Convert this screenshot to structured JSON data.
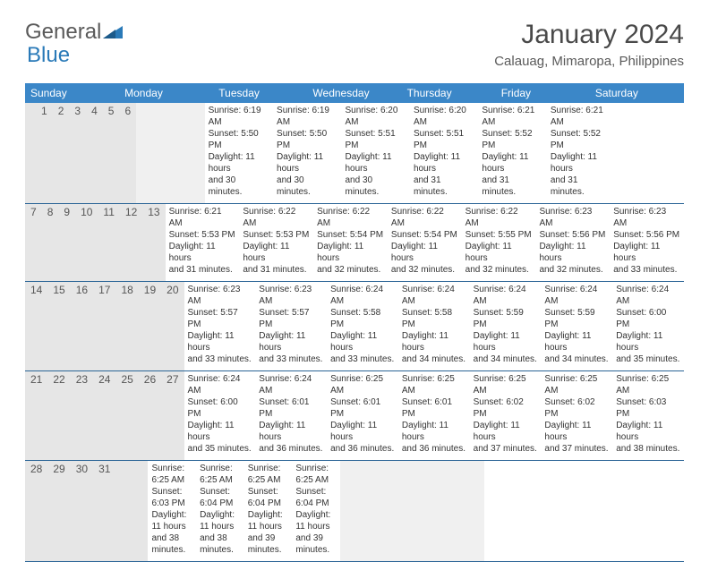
{
  "logo": {
    "general": "General",
    "blue": "Blue"
  },
  "title": "January 2024",
  "subtitle": "Calauag, Mimaropa, Philippines",
  "header_bg": "#3b87c8",
  "daynum_bg": "#e6e6e6",
  "border_color": "#2a6496",
  "day_headers": [
    "Sunday",
    "Monday",
    "Tuesday",
    "Wednesday",
    "Thursday",
    "Friday",
    "Saturday"
  ],
  "weeks": [
    [
      null,
      {
        "num": "1",
        "sunrise": "Sunrise: 6:19 AM",
        "sunset": "Sunset: 5:50 PM",
        "d1": "Daylight: 11 hours",
        "d2": "and 30 minutes."
      },
      {
        "num": "2",
        "sunrise": "Sunrise: 6:19 AM",
        "sunset": "Sunset: 5:50 PM",
        "d1": "Daylight: 11 hours",
        "d2": "and 30 minutes."
      },
      {
        "num": "3",
        "sunrise": "Sunrise: 6:20 AM",
        "sunset": "Sunset: 5:51 PM",
        "d1": "Daylight: 11 hours",
        "d2": "and 30 minutes."
      },
      {
        "num": "4",
        "sunrise": "Sunrise: 6:20 AM",
        "sunset": "Sunset: 5:51 PM",
        "d1": "Daylight: 11 hours",
        "d2": "and 31 minutes."
      },
      {
        "num": "5",
        "sunrise": "Sunrise: 6:21 AM",
        "sunset": "Sunset: 5:52 PM",
        "d1": "Daylight: 11 hours",
        "d2": "and 31 minutes."
      },
      {
        "num": "6",
        "sunrise": "Sunrise: 6:21 AM",
        "sunset": "Sunset: 5:52 PM",
        "d1": "Daylight: 11 hours",
        "d2": "and 31 minutes."
      }
    ],
    [
      {
        "num": "7",
        "sunrise": "Sunrise: 6:21 AM",
        "sunset": "Sunset: 5:53 PM",
        "d1": "Daylight: 11 hours",
        "d2": "and 31 minutes."
      },
      {
        "num": "8",
        "sunrise": "Sunrise: 6:22 AM",
        "sunset": "Sunset: 5:53 PM",
        "d1": "Daylight: 11 hours",
        "d2": "and 31 minutes."
      },
      {
        "num": "9",
        "sunrise": "Sunrise: 6:22 AM",
        "sunset": "Sunset: 5:54 PM",
        "d1": "Daylight: 11 hours",
        "d2": "and 32 minutes."
      },
      {
        "num": "10",
        "sunrise": "Sunrise: 6:22 AM",
        "sunset": "Sunset: 5:54 PM",
        "d1": "Daylight: 11 hours",
        "d2": "and 32 minutes."
      },
      {
        "num": "11",
        "sunrise": "Sunrise: 6:22 AM",
        "sunset": "Sunset: 5:55 PM",
        "d1": "Daylight: 11 hours",
        "d2": "and 32 minutes."
      },
      {
        "num": "12",
        "sunrise": "Sunrise: 6:23 AM",
        "sunset": "Sunset: 5:56 PM",
        "d1": "Daylight: 11 hours",
        "d2": "and 32 minutes."
      },
      {
        "num": "13",
        "sunrise": "Sunrise: 6:23 AM",
        "sunset": "Sunset: 5:56 PM",
        "d1": "Daylight: 11 hours",
        "d2": "and 33 minutes."
      }
    ],
    [
      {
        "num": "14",
        "sunrise": "Sunrise: 6:23 AM",
        "sunset": "Sunset: 5:57 PM",
        "d1": "Daylight: 11 hours",
        "d2": "and 33 minutes."
      },
      {
        "num": "15",
        "sunrise": "Sunrise: 6:23 AM",
        "sunset": "Sunset: 5:57 PM",
        "d1": "Daylight: 11 hours",
        "d2": "and 33 minutes."
      },
      {
        "num": "16",
        "sunrise": "Sunrise: 6:24 AM",
        "sunset": "Sunset: 5:58 PM",
        "d1": "Daylight: 11 hours",
        "d2": "and 33 minutes."
      },
      {
        "num": "17",
        "sunrise": "Sunrise: 6:24 AM",
        "sunset": "Sunset: 5:58 PM",
        "d1": "Daylight: 11 hours",
        "d2": "and 34 minutes."
      },
      {
        "num": "18",
        "sunrise": "Sunrise: 6:24 AM",
        "sunset": "Sunset: 5:59 PM",
        "d1": "Daylight: 11 hours",
        "d2": "and 34 minutes."
      },
      {
        "num": "19",
        "sunrise": "Sunrise: 6:24 AM",
        "sunset": "Sunset: 5:59 PM",
        "d1": "Daylight: 11 hours",
        "d2": "and 34 minutes."
      },
      {
        "num": "20",
        "sunrise": "Sunrise: 6:24 AM",
        "sunset": "Sunset: 6:00 PM",
        "d1": "Daylight: 11 hours",
        "d2": "and 35 minutes."
      }
    ],
    [
      {
        "num": "21",
        "sunrise": "Sunrise: 6:24 AM",
        "sunset": "Sunset: 6:00 PM",
        "d1": "Daylight: 11 hours",
        "d2": "and 35 minutes."
      },
      {
        "num": "22",
        "sunrise": "Sunrise: 6:24 AM",
        "sunset": "Sunset: 6:01 PM",
        "d1": "Daylight: 11 hours",
        "d2": "and 36 minutes."
      },
      {
        "num": "23",
        "sunrise": "Sunrise: 6:25 AM",
        "sunset": "Sunset: 6:01 PM",
        "d1": "Daylight: 11 hours",
        "d2": "and 36 minutes."
      },
      {
        "num": "24",
        "sunrise": "Sunrise: 6:25 AM",
        "sunset": "Sunset: 6:01 PM",
        "d1": "Daylight: 11 hours",
        "d2": "and 36 minutes."
      },
      {
        "num": "25",
        "sunrise": "Sunrise: 6:25 AM",
        "sunset": "Sunset: 6:02 PM",
        "d1": "Daylight: 11 hours",
        "d2": "and 37 minutes."
      },
      {
        "num": "26",
        "sunrise": "Sunrise: 6:25 AM",
        "sunset": "Sunset: 6:02 PM",
        "d1": "Daylight: 11 hours",
        "d2": "and 37 minutes."
      },
      {
        "num": "27",
        "sunrise": "Sunrise: 6:25 AM",
        "sunset": "Sunset: 6:03 PM",
        "d1": "Daylight: 11 hours",
        "d2": "and 38 minutes."
      }
    ],
    [
      {
        "num": "28",
        "sunrise": "Sunrise: 6:25 AM",
        "sunset": "Sunset: 6:03 PM",
        "d1": "Daylight: 11 hours",
        "d2": "and 38 minutes."
      },
      {
        "num": "29",
        "sunrise": "Sunrise: 6:25 AM",
        "sunset": "Sunset: 6:04 PM",
        "d1": "Daylight: 11 hours",
        "d2": "and 38 minutes."
      },
      {
        "num": "30",
        "sunrise": "Sunrise: 6:25 AM",
        "sunset": "Sunset: 6:04 PM",
        "d1": "Daylight: 11 hours",
        "d2": "and 39 minutes."
      },
      {
        "num": "31",
        "sunrise": "Sunrise: 6:25 AM",
        "sunset": "Sunset: 6:04 PM",
        "d1": "Daylight: 11 hours",
        "d2": "and 39 minutes."
      },
      null,
      null,
      null
    ]
  ]
}
